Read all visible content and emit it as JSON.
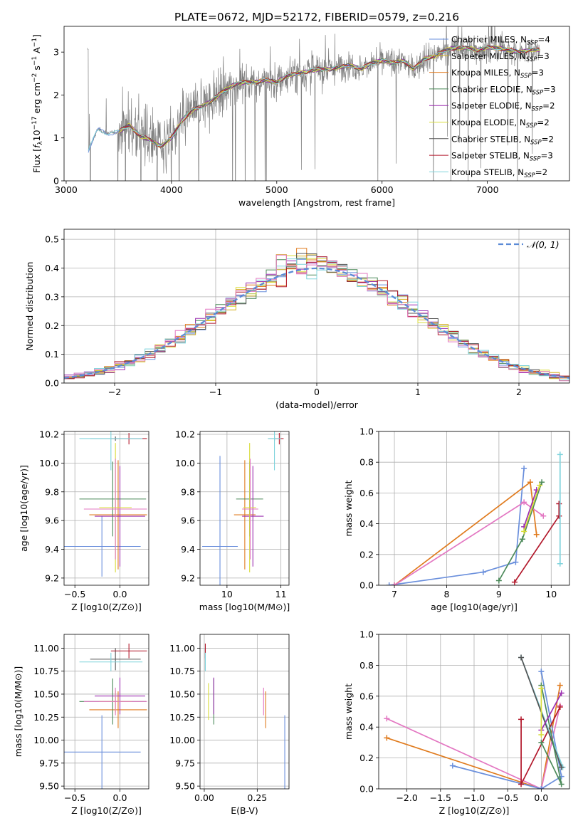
{
  "figure_title": "PLATE=0672, MJD=52172, FIBERID=0579, z=0.216",
  "colors": {
    "Chabrier MILES": "#6a8fdc",
    "Salpeter MILES": "#d6b01f",
    "Kroupa MILES": "#e07b1e",
    "Chabrier ELODIE": "#4c8a5a",
    "Salpeter ELODIE": "#9b2fb0",
    "Kroupa ELODIE": "#d8dc3a",
    "Chabrier STELIB": "#555555",
    "Salpeter STELIB": "#b2182b",
    "Kroupa STELIB": "#7fd3dc",
    "pink": "#e377c2",
    "data": "#808080"
  },
  "chart_data": [
    {
      "id": "spectrum",
      "type": "line",
      "title": "PLATE=0672, MJD=52172, FIBERID=0579, z=0.216",
      "xlabel": "wavelength [Angstrom, rest frame]",
      "ylabel": "Flux [f_λ 10^-17 erg cm^-2 s^-1 A^-1]",
      "xlim": [
        2980,
        7780
      ],
      "ylim": [
        0,
        3.6
      ],
      "xticks": [
        3000,
        4000,
        5000,
        6000,
        7000
      ],
      "yticks": [
        0,
        1,
        2,
        3
      ],
      "grid": false,
      "legend_position": "right",
      "legend": [
        {
          "label": "Chabrier MILES, N",
          "sub": "SSP",
          "suffix": "=4",
          "color": "#6a8fdc"
        },
        {
          "label": "Salpeter MILES, N",
          "sub": "SSP",
          "suffix": "=3",
          "color": "#d6b01f"
        },
        {
          "label": "Kroupa MILES, N",
          "sub": "SSP",
          "suffix": "=3",
          "color": "#e07b1e"
        },
        {
          "label": "Chabrier ELODIE, N",
          "sub": "SSP",
          "suffix": "=3",
          "color": "#4c8a5a"
        },
        {
          "label": "Salpeter ELODIE, N",
          "sub": "SSP",
          "suffix": "=2",
          "color": "#9b2fb0"
        },
        {
          "label": "Kroupa ELODIE, N",
          "sub": "SSP",
          "suffix": "=2",
          "color": "#d8dc3a"
        },
        {
          "label": "Chabrier STELIB, N",
          "sub": "SSP",
          "suffix": "=2",
          "color": "#555555"
        },
        {
          "label": "Salpeter STELIB, N",
          "sub": "SSP",
          "suffix": "=3",
          "color": "#b2182b"
        },
        {
          "label": "Kroupa STELIB, N",
          "sub": "SSP",
          "suffix": "=2",
          "color": "#7fd3dc"
        }
      ],
      "continuum": {
        "x": [
          3210,
          3300,
          3400,
          3500,
          3600,
          3700,
          3800,
          3900,
          4000,
          4100,
          4200,
          4300,
          4400,
          4500,
          4600,
          4700,
          4800,
          4900,
          5000,
          5100,
          5200,
          5300,
          5400,
          5500,
          5600,
          5700,
          5800,
          5900,
          6000,
          6100,
          6200,
          6300,
          6400,
          6500,
          6600,
          6700,
          6800,
          6900,
          7000,
          7100,
          7200,
          7300,
          7400
        ],
        "y": [
          0.7,
          1.2,
          1.1,
          1.15,
          1.3,
          1.05,
          0.95,
          0.8,
          1.0,
          1.4,
          1.65,
          1.75,
          1.9,
          2.1,
          2.25,
          2.3,
          2.3,
          2.35,
          2.3,
          2.45,
          2.5,
          2.55,
          2.6,
          2.6,
          2.65,
          2.7,
          2.6,
          2.75,
          2.8,
          2.75,
          2.8,
          2.6,
          2.85,
          2.9,
          3.05,
          3.1,
          3.1,
          3.05,
          3.1,
          3.1,
          3.05,
          3.0,
          3.05
        ]
      },
      "data_range_x": [
        3200,
        7500
      ]
    },
    {
      "id": "residuals",
      "type": "line",
      "xlabel": "(data-model)/error",
      "ylabel": "Normed distribution",
      "xlim": [
        -2.5,
        2.5
      ],
      "ylim": [
        0,
        0.535
      ],
      "xticks": [
        -2,
        -1,
        0,
        1,
        2
      ],
      "yticks": [
        0.0,
        0.1,
        0.2,
        0.3,
        0.4,
        0.5
      ],
      "grid": true,
      "legend_position": "top-right",
      "reference_label": "𝒩(0, 1)",
      "bin_width": 0.1
    },
    {
      "id": "age_vs_Z",
      "type": "scatter",
      "xlabel": "Z [log10(Z/Z⊙)]",
      "ylabel": "age  [log10(age/yr)]",
      "xlim": [
        -0.62,
        0.32
      ],
      "ylim": [
        9.15,
        10.22
      ],
      "xticks": [
        -0.5,
        0.0
      ],
      "yticks": [
        9.2,
        9.4,
        9.6,
        9.8,
        10.0,
        10.2
      ],
      "grid": true,
      "points": [
        {
          "model": "Chabrier MILES",
          "x": -0.2,
          "y": 9.42,
          "xerr": 0.43,
          "yerr": 0.21,
          "color": "#6a8fdc"
        },
        {
          "model": "Kroupa MILES",
          "x": -0.02,
          "y": 9.64,
          "xerr": 0.32,
          "yerr": 0.38,
          "color": "#e07b1e"
        },
        {
          "model": "Chabrier ELODIE",
          "x": -0.08,
          "y": 9.75,
          "xerr": 0.37,
          "yerr": 0.26,
          "color": "#4c8a5a"
        },
        {
          "model": "Salpeter ELODIE",
          "x": 0.0,
          "y": 9.63,
          "xerr": 0.28,
          "yerr": 0.35,
          "color": "#9b2fb0"
        },
        {
          "model": "Kroupa ELODIE",
          "x": -0.05,
          "y": 9.69,
          "xerr": 0.18,
          "yerr": 0.45,
          "color": "#d8dc3a"
        },
        {
          "model": "pink",
          "x": -0.05,
          "y": 9.68,
          "xerr": 0.35,
          "yerr": 0.35,
          "color": "#e377c2"
        },
        {
          "model": "Chabrier STELIB",
          "x": -0.05,
          "y": 10.17,
          "xerr": 0.28,
          "yerr": 0.015,
          "color": "#555555"
        },
        {
          "model": "Salpeter STELIB",
          "x": 0.1,
          "y": 10.17,
          "xerr": 0.2,
          "yerr": 0.04,
          "color": "#b2182b"
        },
        {
          "model": "Kroupa STELIB",
          "x": -0.1,
          "y": 10.17,
          "xerr": 0.35,
          "yerr": 0.22,
          "color": "#7fd3dc"
        }
      ]
    },
    {
      "id": "age_vs_mass",
      "type": "scatter",
      "xlabel": "mass [log10(M/M⊙)]",
      "ylabel": "",
      "xlim": [
        9.5,
        11.15
      ],
      "ylim": [
        9.15,
        10.22
      ],
      "xticks": [
        10,
        11
      ],
      "yticks": [
        9.2,
        9.4,
        9.6,
        9.8,
        10.0,
        10.2
      ],
      "grid": true,
      "points": [
        {
          "model": "Chabrier MILES",
          "x": 9.87,
          "y": 9.42,
          "xerr": 0.33,
          "yerr": 0.63,
          "color": "#6a8fdc"
        },
        {
          "model": "Kroupa MILES",
          "x": 10.33,
          "y": 9.64,
          "xerr": 0.2,
          "yerr": 0.38,
          "color": "#e07b1e"
        },
        {
          "model": "Chabrier ELODIE",
          "x": 10.42,
          "y": 9.75,
          "xerr": 0.25,
          "yerr": 0.26,
          "color": "#4c8a5a"
        },
        {
          "model": "Salpeter ELODIE",
          "x": 10.48,
          "y": 9.63,
          "xerr": 0.2,
          "yerr": 0.35,
          "color": "#9b2fb0"
        },
        {
          "model": "Kroupa ELODIE",
          "x": 10.42,
          "y": 9.69,
          "xerr": 0.12,
          "yerr": 0.45,
          "color": "#d8dc3a"
        },
        {
          "model": "pink",
          "x": 10.43,
          "y": 9.68,
          "xerr": 0.15,
          "yerr": 0.35,
          "color": "#e377c2"
        },
        {
          "model": "Chabrier STELIB",
          "x": 10.88,
          "y": 10.17,
          "xerr": 0.12,
          "yerr": 0.015,
          "color": "#555555"
        },
        {
          "model": "Salpeter STELIB",
          "x": 10.97,
          "y": 10.17,
          "xerr": 0.08,
          "yerr": 0.04,
          "color": "#b2182b"
        },
        {
          "model": "Kroupa STELIB",
          "x": 10.88,
          "y": 10.17,
          "xerr": 0.12,
          "yerr": 0.22,
          "color": "#7fd3dc"
        }
      ]
    },
    {
      "id": "weight_vs_age",
      "type": "line",
      "xlabel": "age  [log10(age/yr)]",
      "ylabel": "mass weight",
      "xlim": [
        6.7,
        10.35
      ],
      "ylim": [
        0,
        1.0
      ],
      "xticks": [
        7,
        8,
        9,
        10
      ],
      "yticks": [
        0.0,
        0.2,
        0.4,
        0.6,
        0.8,
        1.0
      ],
      "grid": true,
      "series": [
        {
          "model": "Chabrier MILES",
          "color": "#6a8fdc",
          "x": [
            6.9,
            8.7,
            9.32,
            9.48
          ],
          "y": [
            0.0,
            0.085,
            0.15,
            0.76
          ]
        },
        {
          "model": "Kroupa MILES",
          "color": "#e07b1e",
          "x": [
            7.0,
            9.6,
            9.72
          ],
          "y": [
            0.0,
            0.67,
            0.33
          ]
        },
        {
          "model": "pink",
          "color": "#e377c2",
          "x": [
            7.0,
            9.48,
            9.85
          ],
          "y": [
            0.0,
            0.54,
            0.45
          ]
        },
        {
          "model": "Chabrier ELODIE",
          "color": "#4c8a5a",
          "x": [
            9.0,
            9.45,
            9.82
          ],
          "y": [
            0.03,
            0.3,
            0.67
          ]
        },
        {
          "model": "Salpeter ELODIE",
          "color": "#9b2fb0",
          "x": [
            9.48,
            9.72
          ],
          "y": [
            0.38,
            0.62
          ]
        },
        {
          "model": "Kroupa ELODIE",
          "color": "#d8dc3a",
          "x": [
            9.48,
            9.78
          ],
          "y": [
            0.35,
            0.65
          ]
        },
        {
          "model": "Salpeter STELIB",
          "color": "#b2182b",
          "x": [
            9.3,
            10.15,
            10.15
          ],
          "y": [
            0.02,
            0.45,
            0.53
          ]
        },
        {
          "model": "Kroupa STELIB",
          "color": "#7fd3dc",
          "x": [
            10.17,
            10.17
          ],
          "y": [
            0.14,
            0.85
          ]
        }
      ]
    },
    {
      "id": "mass_vs_Z",
      "type": "scatter",
      "xlabel": "Z [log10(Z/Z⊙)]",
      "ylabel": "mass [log10(M/M⊙)]",
      "xlim": [
        -0.62,
        0.32
      ],
      "ylim": [
        9.47,
        11.15
      ],
      "xticks": [
        -0.5,
        0.0
      ],
      "yticks": [
        9.5,
        9.75,
        10.0,
        10.25,
        10.5,
        10.75,
        11.0
      ],
      "grid": true,
      "points": [
        {
          "model": "Chabrier MILES",
          "x": -0.2,
          "y": 9.87,
          "xerr": 0.43,
          "yerr": 0.4,
          "color": "#6a8fdc"
        },
        {
          "model": "Kroupa MILES",
          "x": -0.02,
          "y": 10.33,
          "xerr": 0.32,
          "yerr": 0.2,
          "color": "#e07b1e"
        },
        {
          "model": "Chabrier ELODIE",
          "x": -0.08,
          "y": 10.42,
          "xerr": 0.37,
          "yerr": 0.25,
          "color": "#4c8a5a"
        },
        {
          "model": "Salpeter ELODIE",
          "x": 0.0,
          "y": 10.48,
          "xerr": 0.28,
          "yerr": 0.2,
          "color": "#9b2fb0"
        },
        {
          "model": "Kroupa ELODIE",
          "x": -0.05,
          "y": 10.42,
          "xerr": 0.18,
          "yerr": 0.12,
          "color": "#d8dc3a"
        },
        {
          "model": "pink",
          "x": -0.05,
          "y": 10.42,
          "xerr": 0.35,
          "yerr": 0.15,
          "color": "#e377c2"
        },
        {
          "model": "Chabrier STELIB",
          "x": -0.05,
          "y": 10.88,
          "xerr": 0.28,
          "yerr": 0.12,
          "color": "#555555"
        },
        {
          "model": "Salpeter STELIB",
          "x": 0.1,
          "y": 10.97,
          "xerr": 0.2,
          "yerr": 0.08,
          "color": "#b2182b"
        },
        {
          "model": "Kroupa STELIB",
          "x": -0.1,
          "y": 10.85,
          "xerr": 0.35,
          "yerr": 0.1,
          "color": "#7fd3dc"
        }
      ]
    },
    {
      "id": "mass_vs_ebv",
      "type": "scatter",
      "xlabel": "E(B-V)",
      "ylabel": "",
      "xlim": [
        -0.02,
        0.4
      ],
      "ylim": [
        9.47,
        11.15
      ],
      "xticks": [
        0.0,
        0.25
      ],
      "yticks": [
        9.5,
        9.75,
        10.0,
        10.25,
        10.5,
        10.75,
        11.0
      ],
      "grid": true,
      "points": [
        {
          "model": "Chabrier MILES",
          "x": 0.38,
          "y": 9.87,
          "xerr": 0.0,
          "yerr": 0.4,
          "color": "#6a8fdc"
        },
        {
          "model": "Kroupa MILES",
          "x": 0.29,
          "y": 10.33,
          "xerr": 0.0,
          "yerr": 0.2,
          "color": "#e07b1e"
        },
        {
          "model": "pink",
          "x": 0.28,
          "y": 10.42,
          "xerr": 0.0,
          "yerr": 0.15,
          "color": "#e377c2"
        },
        {
          "model": "Chabrier ELODIE",
          "x": 0.045,
          "y": 10.42,
          "xerr": 0.0,
          "yerr": 0.25,
          "color": "#4c8a5a"
        },
        {
          "model": "Salpeter ELODIE",
          "x": 0.045,
          "y": 10.48,
          "xerr": 0.0,
          "yerr": 0.2,
          "color": "#9b2fb0"
        },
        {
          "model": "Kroupa ELODIE",
          "x": 0.02,
          "y": 10.42,
          "xerr": 0.0,
          "yerr": 0.2,
          "color": "#d8dc3a"
        },
        {
          "model": "Chabrier STELIB",
          "x": 0.005,
          "y": 10.88,
          "xerr": 0.0,
          "yerr": 0.12,
          "color": "#555555"
        },
        {
          "model": "Salpeter STELIB",
          "x": 0.005,
          "y": 10.97,
          "xerr": 0.0,
          "yerr": 0.08,
          "color": "#b2182b"
        },
        {
          "model": "Kroupa STELIB",
          "x": 0.005,
          "y": 10.85,
          "xerr": 0.0,
          "yerr": 0.1,
          "color": "#7fd3dc"
        }
      ]
    },
    {
      "id": "weight_vs_Z",
      "type": "line",
      "xlabel": "Z [log10(Z/Z⊙)]",
      "ylabel": "mass weight",
      "xlim": [
        -2.42,
        0.42
      ],
      "ylim": [
        0,
        1.0
      ],
      "xticks": [
        -2.0,
        -1.5,
        -1.0,
        -0.5,
        0.0
      ],
      "yticks": [
        0.0,
        0.2,
        0.4,
        0.6,
        0.8,
        1.0
      ],
      "grid": true,
      "series": [
        {
          "model": "Kroupa MILES",
          "color": "#e07b1e",
          "x": [
            -2.3,
            0.0,
            0.28
          ],
          "y": [
            0.33,
            0.0,
            0.67
          ]
        },
        {
          "model": "pink",
          "color": "#e377c2",
          "x": [
            -2.3,
            0.0,
            0.28
          ],
          "y": [
            0.455,
            0.0,
            0.54
          ]
        },
        {
          "model": "Chabrier MILES",
          "color": "#6a8fdc",
          "x": [
            -1.32,
            0.0,
            0.3,
            0.0
          ],
          "y": [
            0.15,
            0.0,
            0.08,
            0.76
          ]
        },
        {
          "model": "Salpeter STELIB",
          "color": "#b2182b",
          "x": [
            -0.3,
            -0.3,
            0.28
          ],
          "y": [
            0.45,
            0.03,
            0.53
          ]
        },
        {
          "model": "Kroupa STELIB",
          "color": "#7fd3dc",
          "x": [
            -0.3,
            0.32
          ],
          "y": [
            0.85,
            0.14
          ]
        },
        {
          "model": "Chabrier STELIB",
          "color": "#555555",
          "x": [
            -0.3,
            0.3
          ],
          "y": [
            0.85,
            0.14
          ]
        },
        {
          "model": "Chabrier ELODIE",
          "color": "#4c8a5a",
          "x": [
            0.0,
            0.3,
            0.0
          ],
          "y": [
            0.67,
            0.03,
            0.3
          ]
        },
        {
          "model": "Salpeter ELODIE",
          "color": "#9b2fb0",
          "x": [
            0.0,
            0.3
          ],
          "y": [
            0.38,
            0.62
          ]
        },
        {
          "model": "Kroupa ELODIE",
          "color": "#d8dc3a",
          "x": [
            0.0,
            0.0
          ],
          "y": [
            0.35,
            0.65
          ]
        }
      ]
    }
  ]
}
